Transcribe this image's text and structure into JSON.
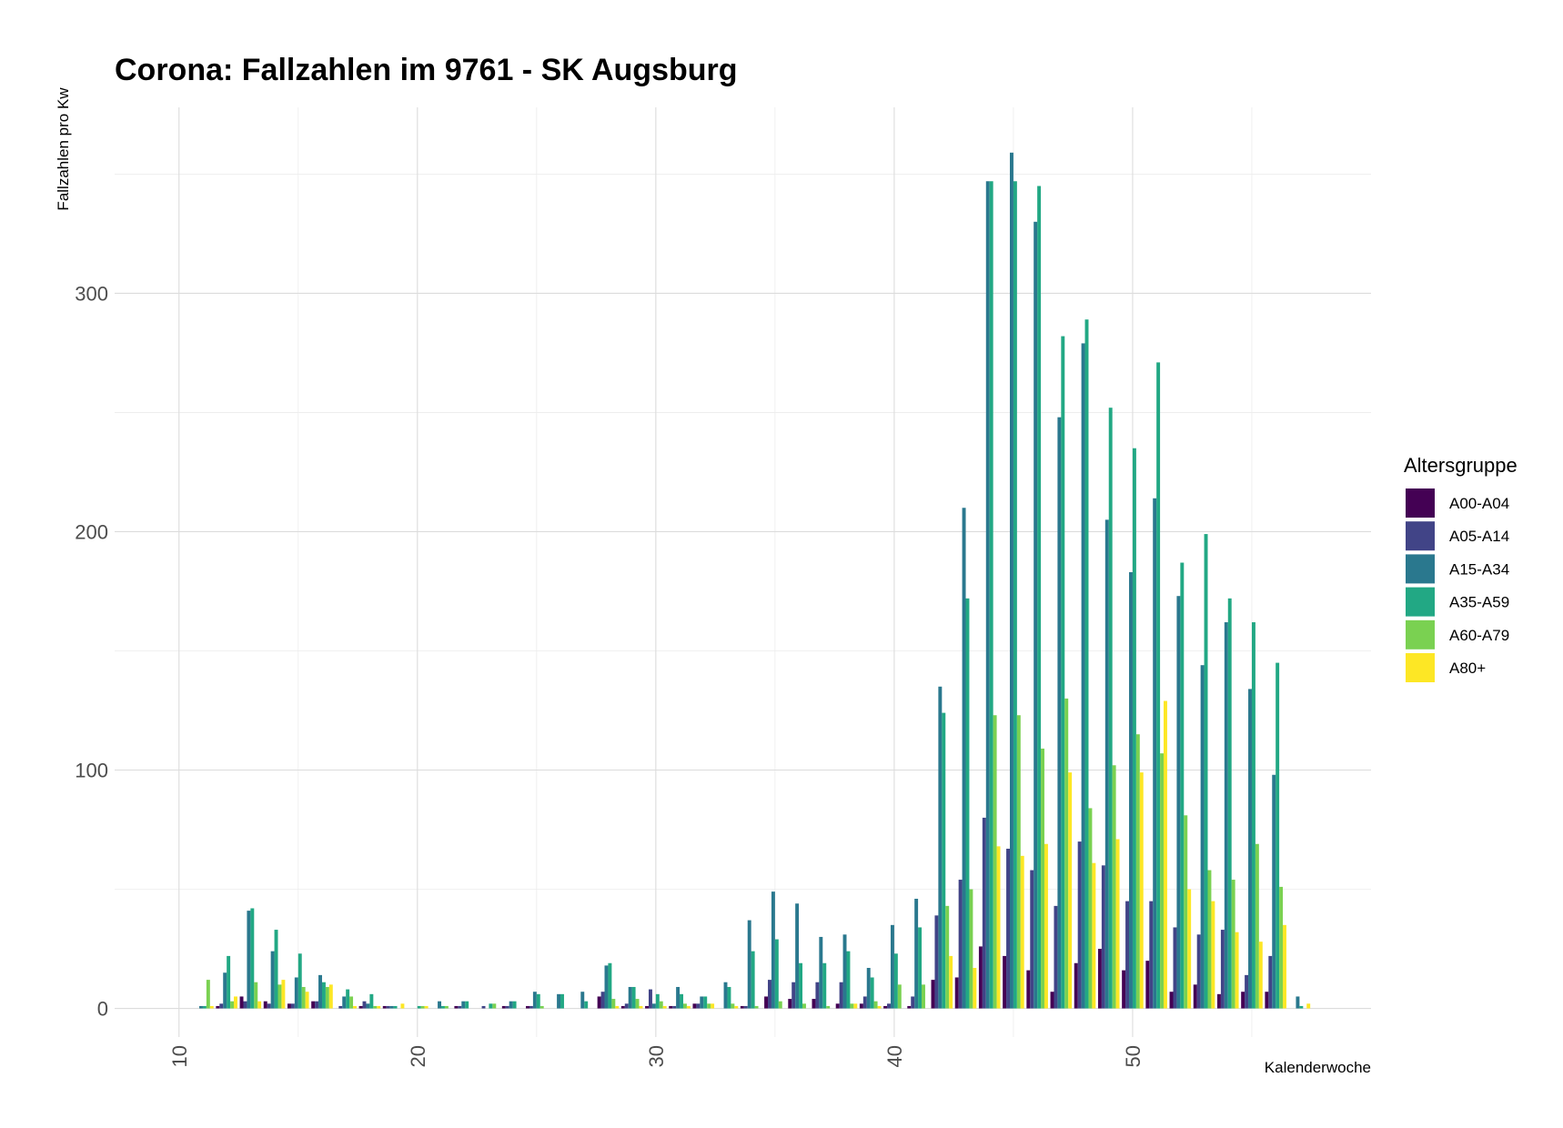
{
  "chart_data": {
    "type": "bar",
    "title": "Corona: Fallzahlen im 9761 - SK Augsburg",
    "xlabel": "Kalenderwoche",
    "ylabel": "Fallzahlen pro Kw",
    "xlim": [
      7.3,
      60
    ],
    "ylim": [
      -12,
      378
    ],
    "x_ticks": [
      10,
      20,
      30,
      40,
      50
    ],
    "y_ticks": [
      0,
      100,
      200,
      300
    ],
    "grid": true,
    "legend": {
      "title": "Altersgruppe",
      "position": "right"
    },
    "x": [
      11,
      12,
      13,
      14,
      15,
      16,
      17,
      18,
      19,
      20,
      21,
      22,
      23,
      24,
      25,
      26,
      27,
      28,
      29,
      30,
      31,
      32,
      33,
      34,
      35,
      36,
      37,
      38,
      39,
      40,
      41,
      42,
      43,
      44,
      45,
      46,
      47,
      48,
      49,
      50,
      51,
      52,
      53,
      54,
      55,
      56,
      57
    ],
    "series": [
      {
        "name": "A00-A04",
        "color": "#440154",
        "values": [
          0,
          1,
          5,
          3,
          2,
          3,
          0,
          1,
          1,
          0,
          0,
          1,
          0,
          1,
          1,
          0,
          0,
          5,
          1,
          1,
          1,
          2,
          0,
          1,
          5,
          4,
          4,
          2,
          2,
          1,
          1,
          12,
          13,
          26,
          22,
          16,
          7,
          19,
          25,
          16,
          20,
          7,
          10,
          6,
          7,
          7,
          0
        ]
      },
      {
        "name": "A05-A14",
        "color": "#414487",
        "values": [
          0,
          2,
          3,
          2,
          2,
          3,
          1,
          3,
          1,
          0,
          0,
          1,
          1,
          1,
          1,
          0,
          0,
          7,
          2,
          8,
          1,
          2,
          0,
          1,
          12,
          11,
          11,
          11,
          5,
          2,
          5,
          39,
          54,
          80,
          67,
          58,
          43,
          70,
          60,
          45,
          45,
          34,
          31,
          33,
          14,
          22,
          0
        ]
      },
      {
        "name": "A15-A34",
        "color": "#2a788e",
        "values": [
          1,
          15,
          41,
          24,
          13,
          14,
          5,
          2,
          1,
          0,
          3,
          3,
          0,
          3,
          7,
          6,
          7,
          18,
          9,
          2,
          9,
          5,
          11,
          37,
          49,
          44,
          30,
          31,
          17,
          35,
          46,
          135,
          210,
          347,
          359,
          330,
          248,
          279,
          205,
          183,
          214,
          173,
          144,
          162,
          134,
          98,
          5
        ]
      },
      {
        "name": "A35-A59",
        "color": "#22a884",
        "values": [
          1,
          22,
          42,
          33,
          23,
          11,
          8,
          6,
          1,
          1,
          1,
          3,
          2,
          3,
          6,
          6,
          3,
          19,
          9,
          6,
          6,
          5,
          9,
          24,
          29,
          19,
          19,
          24,
          13,
          23,
          34,
          124,
          172,
          347,
          347,
          345,
          282,
          289,
          252,
          235,
          271,
          187,
          199,
          172,
          162,
          145,
          1
        ]
      },
      {
        "name": "A60-A79",
        "color": "#7ad151",
        "values": [
          12,
          3,
          11,
          10,
          9,
          9,
          5,
          1,
          0,
          1,
          1,
          0,
          2,
          0,
          1,
          0,
          0,
          4,
          4,
          3,
          2,
          2,
          2,
          1,
          3,
          2,
          1,
          2,
          3,
          10,
          10,
          43,
          50,
          123,
          123,
          109,
          130,
          84,
          102,
          115,
          107,
          81,
          58,
          54,
          69,
          51,
          0
        ]
      },
      {
        "name": "A80+",
        "color": "#fde725",
        "values": [
          1,
          5,
          3,
          12,
          7,
          10,
          1,
          1,
          2,
          1,
          0,
          0,
          0,
          0,
          0,
          0,
          0,
          1,
          1,
          1,
          1,
          2,
          1,
          0,
          0,
          0,
          0,
          2,
          1,
          0,
          0,
          22,
          17,
          68,
          64,
          69,
          99,
          61,
          71,
          99,
          129,
          50,
          45,
          32,
          28,
          35,
          2
        ]
      }
    ]
  }
}
